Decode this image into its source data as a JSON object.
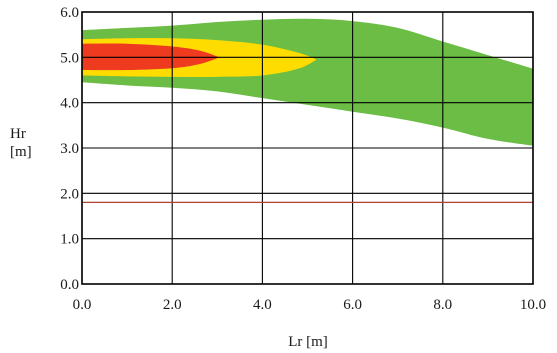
{
  "chart_data": {
    "type": "area",
    "xlabel": "Lr [m]",
    "ylabel": [
      "Hr",
      "[m]"
    ],
    "xlim": [
      0,
      10
    ],
    "ylim": [
      0,
      6
    ],
    "x_ticks": [
      "0.0",
      "2.0",
      "4.0",
      "6.0",
      "8.0",
      "10.0"
    ],
    "y_ticks": [
      "0.0",
      "1.0",
      "2.0",
      "3.0",
      "4.0",
      "5.0",
      "6.0"
    ],
    "grid": true,
    "legend": null,
    "regions": [
      {
        "color": "#6cbd45",
        "upper": [
          [
            0,
            5.6
          ],
          [
            1,
            5.65
          ],
          [
            2,
            5.7
          ],
          [
            3,
            5.78
          ],
          [
            4,
            5.83
          ],
          [
            5,
            5.85
          ],
          [
            6,
            5.8
          ],
          [
            7,
            5.65
          ],
          [
            8,
            5.35
          ],
          [
            9,
            5.05
          ],
          [
            10,
            4.75
          ]
        ],
        "lower": [
          [
            10,
            3.05
          ],
          [
            9,
            3.2
          ],
          [
            8,
            3.45
          ],
          [
            7,
            3.65
          ],
          [
            6,
            3.8
          ],
          [
            5,
            3.95
          ],
          [
            4,
            4.1
          ],
          [
            3,
            4.25
          ],
          [
            2,
            4.33
          ],
          [
            1,
            4.38
          ],
          [
            0,
            4.45
          ]
        ]
      },
      {
        "color": "#fedc00",
        "upper": [
          [
            0,
            5.4
          ],
          [
            1,
            5.42
          ],
          [
            2,
            5.42
          ],
          [
            3,
            5.38
          ],
          [
            4,
            5.28
          ],
          [
            4.8,
            5.1
          ],
          [
            5.2,
            4.95
          ]
        ],
        "lower": [
          [
            5.2,
            4.95
          ],
          [
            4.8,
            4.75
          ],
          [
            4,
            4.6
          ],
          [
            3,
            4.57
          ],
          [
            2,
            4.57
          ],
          [
            1,
            4.58
          ],
          [
            0,
            4.6
          ]
        ]
      },
      {
        "color": "#ee3b1f",
        "upper": [
          [
            0,
            5.3
          ],
          [
            1,
            5.3
          ],
          [
            2,
            5.24
          ],
          [
            2.6,
            5.15
          ],
          [
            3.05,
            5.0
          ]
        ],
        "lower": [
          [
            3.05,
            5.0
          ],
          [
            2.6,
            4.85
          ],
          [
            2,
            4.76
          ],
          [
            1,
            4.72
          ],
          [
            0,
            4.72
          ]
        ]
      }
    ],
    "reference_lines": [
      {
        "y": 1.8,
        "color": "#b04030"
      }
    ]
  }
}
